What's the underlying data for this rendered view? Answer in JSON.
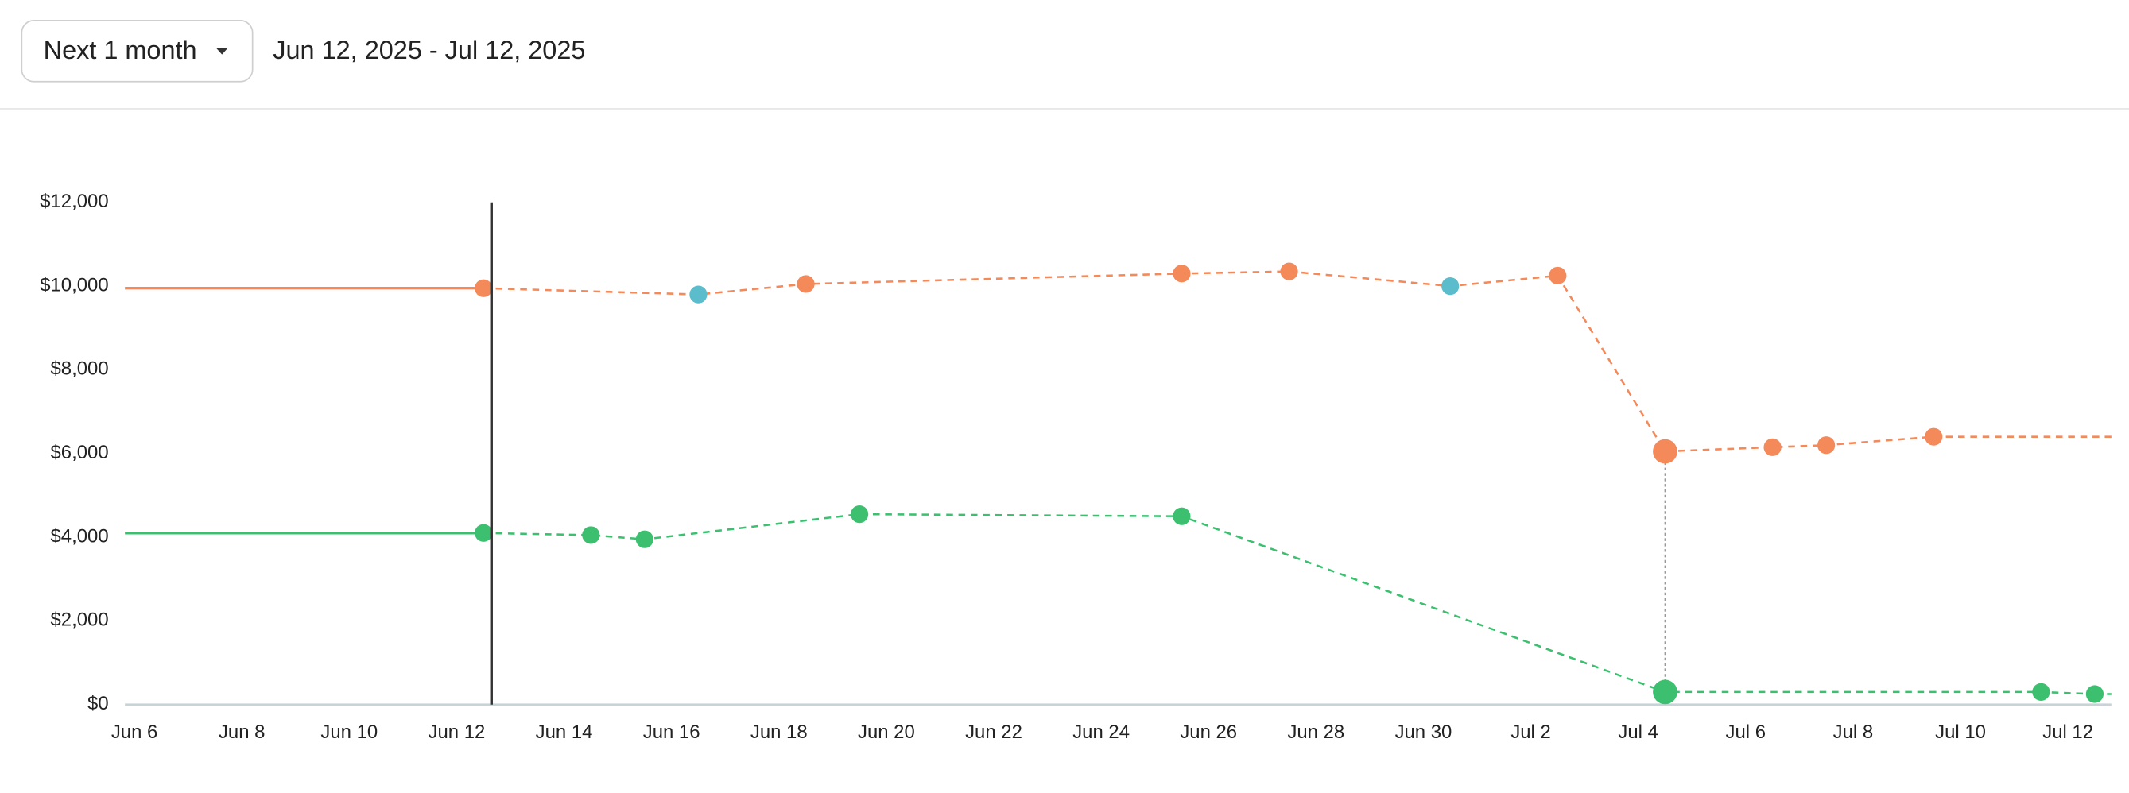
{
  "header": {
    "range_select": "Next 1 month",
    "date_range": "Jun 12, 2025 - Jul 12, 2025"
  },
  "chart_data": {
    "type": "line",
    "xlim": [
      "Jun 6",
      "Jul 12"
    ],
    "xticks": [
      "Jun 6",
      "Jun 8",
      "Jun 10",
      "Jun 12",
      "Jun 14",
      "Jun 16",
      "Jun 18",
      "Jun 20",
      "Jun 22",
      "Jun 24",
      "Jun 26",
      "Jun 28",
      "Jun 30",
      "Jul 2",
      "Jul 4",
      "Jul 6",
      "Jul 8",
      "Jul 10",
      "Jul 12"
    ],
    "ylim": [
      0,
      12000
    ],
    "yticks": [
      {
        "value": 0,
        "label": "$0"
      },
      {
        "value": 2000,
        "label": "$2,000"
      },
      {
        "value": 4000,
        "label": "$4,000"
      },
      {
        "value": 6000,
        "label": "$6,000"
      },
      {
        "value": 8000,
        "label": "$8,000"
      },
      {
        "value": 10000,
        "label": "$10,000"
      },
      {
        "value": 12000,
        "label": "$12,000"
      }
    ],
    "selected_x": "Jul 4",
    "series": [
      {
        "color": "#f4895a",
        "x": [
          "Jun 12",
          "Jun 16",
          "Jun 18",
          "Jun 25",
          "Jun 27",
          "Jun 30",
          "Jul 2",
          "Jul 4",
          "Jul 6",
          "Jul 7",
          "Jul 9"
        ],
        "values": [
          9950,
          9800,
          10050,
          10300,
          10350,
          10000,
          10250,
          6050,
          6150,
          6200,
          6400
        ],
        "marker_colors": [
          "#f4895a",
          "#5bbccc",
          "#f4895a",
          "#f4895a",
          "#f4895a",
          "#5bbccc",
          "#f4895a",
          "#f4895a",
          "#f4895a",
          "#f4895a",
          "#f4895a"
        ]
      },
      {
        "color": "#3cc070",
        "x": [
          "Jun 12",
          "Jun 14",
          "Jun 15",
          "Jun 19",
          "Jun 25",
          "Jul 4",
          "Jul 11",
          "Jul 12"
        ],
        "values": [
          4100,
          4050,
          3950,
          4550,
          4500,
          300,
          300,
          250
        ],
        "marker_colors": [
          "#3cc070",
          "#3cc070",
          "#3cc070",
          "#3cc070",
          "#3cc070",
          "#3cc070",
          "#3cc070",
          "#3cc070"
        ]
      }
    ]
  }
}
